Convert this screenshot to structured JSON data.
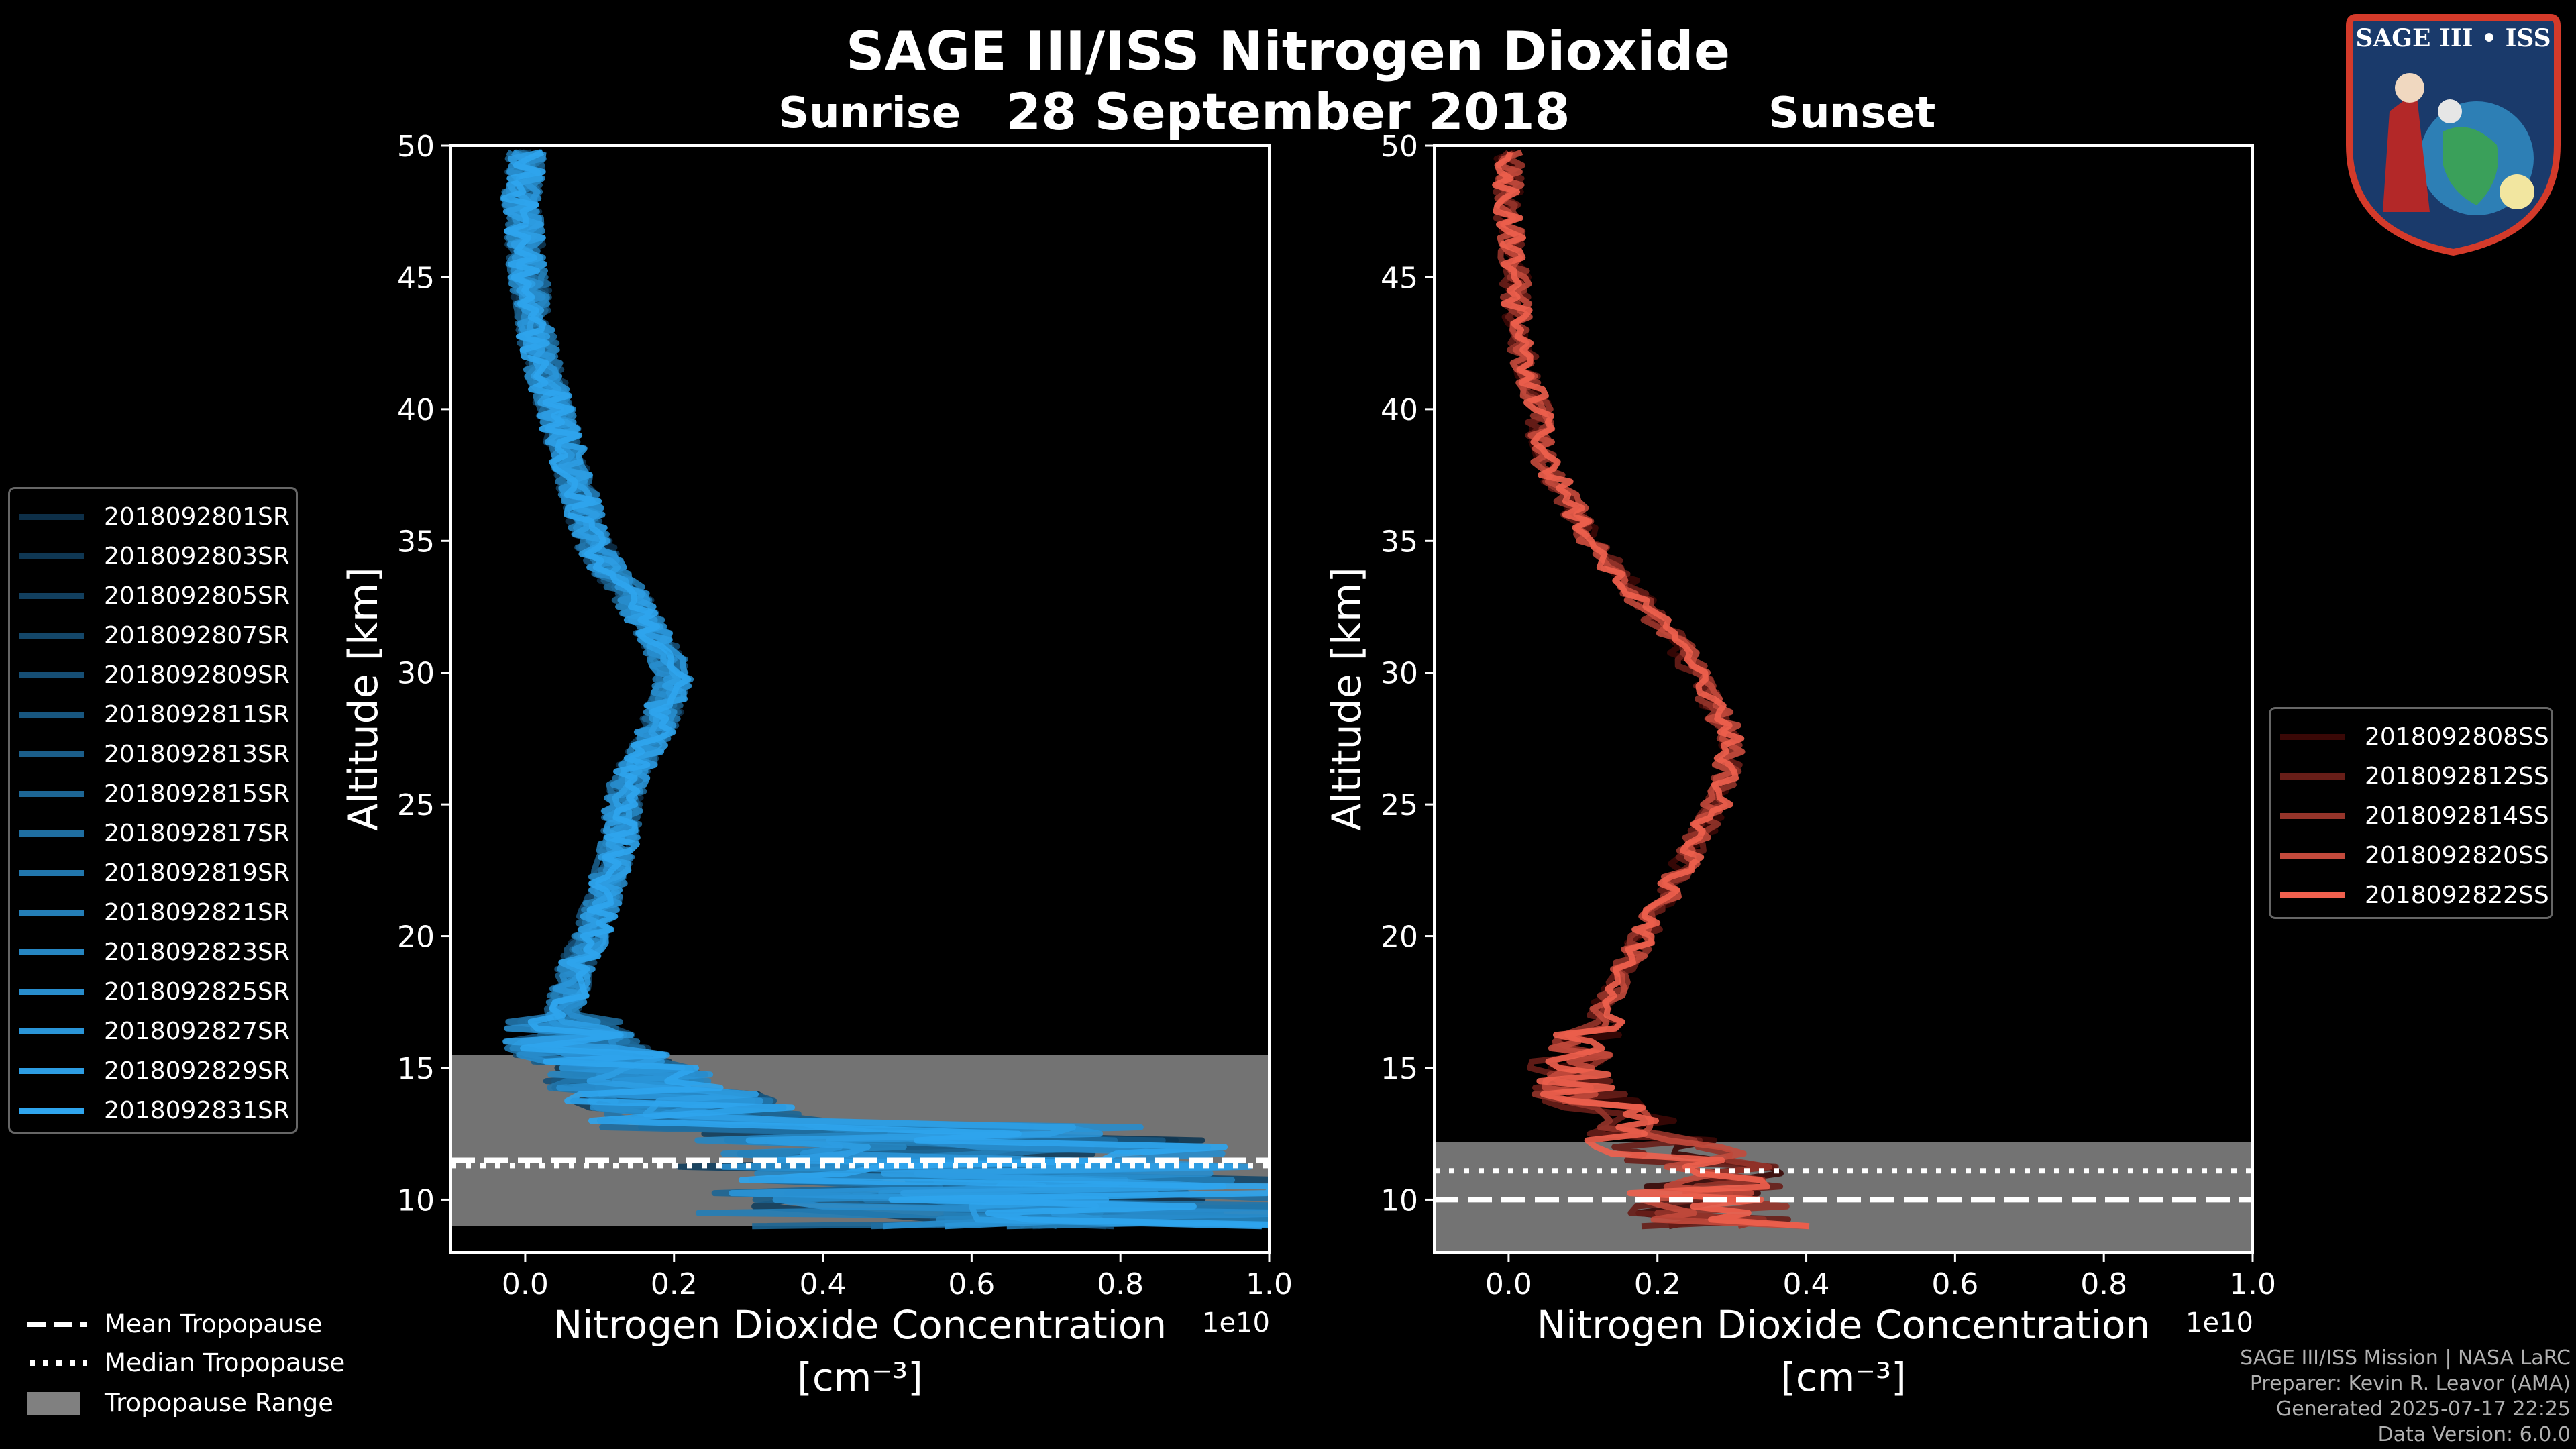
{
  "title": "SAGE III/ISS Nitrogen Dioxide",
  "date": "28 September 2018",
  "colors": {
    "sunrise": "#1f8fd6",
    "sunset": "#f06050",
    "tropopause_range": "#808080"
  },
  "chart_data": [
    {
      "type": "line",
      "subtitle": "Sunrise",
      "xlabel": "Nitrogen Dioxide Concentration",
      "xlabel_unit": "[cm⁻³]",
      "x_exponent": "1e10",
      "ylabel": "Altitude [km]",
      "xlim": [
        -0.1,
        1.0
      ],
      "ylim": [
        8,
        50
      ],
      "xticks": [
        "0.0",
        "0.2",
        "0.4",
        "0.6",
        "0.8",
        "1.0"
      ],
      "yticks": [
        "10",
        "15",
        "20",
        "25",
        "30",
        "35",
        "40",
        "45",
        "50"
      ],
      "legend_position": "left",
      "tropopause": {
        "mean": 11.5,
        "median": 11.3,
        "range": [
          9,
          15.5
        ]
      },
      "profile_altitudes": [
        9,
        10,
        11,
        12,
        13,
        14,
        15,
        16,
        17,
        18,
        19,
        20,
        21,
        22,
        23,
        24,
        25,
        26,
        27,
        28,
        29,
        30,
        31,
        32,
        33,
        34,
        35,
        36,
        37,
        38,
        39,
        40,
        41,
        42,
        43,
        44,
        45,
        46,
        47,
        48,
        49,
        50
      ],
      "profile_mean_x": [
        0.45,
        0.4,
        0.35,
        0.3,
        0.25,
        0.18,
        0.12,
        0.06,
        0.05,
        0.06,
        0.07,
        0.09,
        0.1,
        0.11,
        0.12,
        0.13,
        0.13,
        0.14,
        0.16,
        0.18,
        0.19,
        0.2,
        0.18,
        0.16,
        0.14,
        0.11,
        0.09,
        0.08,
        0.07,
        0.06,
        0.05,
        0.04,
        0.03,
        0.02,
        0.015,
        0.01,
        0.005,
        0.0,
        0.0,
        -0.005,
        0.0,
        0.0
      ],
      "series": [
        {
          "name": "2018092801SR"
        },
        {
          "name": "2018092803SR"
        },
        {
          "name": "2018092805SR"
        },
        {
          "name": "2018092807SR"
        },
        {
          "name": "2018092809SR"
        },
        {
          "name": "2018092811SR"
        },
        {
          "name": "2018092813SR"
        },
        {
          "name": "2018092815SR"
        },
        {
          "name": "2018092817SR"
        },
        {
          "name": "2018092819SR"
        },
        {
          "name": "2018092821SR"
        },
        {
          "name": "2018092823SR"
        },
        {
          "name": "2018092825SR"
        },
        {
          "name": "2018092827SR"
        },
        {
          "name": "2018092829SR"
        },
        {
          "name": "2018092831SR"
        }
      ]
    },
    {
      "type": "line",
      "subtitle": "Sunset",
      "xlabel": "Nitrogen Dioxide Concentration",
      "xlabel_unit": "[cm⁻³]",
      "x_exponent": "1e10",
      "ylabel": "Altitude [km]",
      "xlim": [
        -0.1,
        1.0
      ],
      "ylim": [
        8,
        50
      ],
      "xticks": [
        "0.0",
        "0.2",
        "0.4",
        "0.6",
        "0.8",
        "1.0"
      ],
      "yticks": [
        "10",
        "15",
        "20",
        "25",
        "30",
        "35",
        "40",
        "45",
        "50"
      ],
      "legend_position": "right",
      "tropopause": {
        "mean": 10,
        "median": 11.1,
        "range": [
          8,
          12.2
        ]
      },
      "profile_altitudes": [
        9,
        10,
        11,
        12,
        13,
        14,
        15,
        16,
        17,
        18,
        19,
        20,
        21,
        22,
        23,
        24,
        25,
        26,
        27,
        28,
        29,
        30,
        31,
        32,
        33,
        34,
        35,
        36,
        37,
        38,
        39,
        40,
        41,
        42,
        43,
        44,
        45,
        46,
        47,
        48,
        49,
        50
      ],
      "profile_mean_x": [
        0.3,
        0.25,
        0.3,
        0.2,
        0.15,
        0.1,
        0.08,
        0.1,
        0.12,
        0.14,
        0.16,
        0.18,
        0.2,
        0.22,
        0.24,
        0.26,
        0.28,
        0.29,
        0.3,
        0.29,
        0.27,
        0.25,
        0.23,
        0.2,
        0.17,
        0.14,
        0.11,
        0.09,
        0.07,
        0.05,
        0.04,
        0.04,
        0.03,
        0.02,
        0.015,
        0.01,
        0.01,
        0.005,
        0.0,
        0.0,
        0.0,
        0.005
      ],
      "series": [
        {
          "name": "2018092808SS"
        },
        {
          "name": "2018092812SS"
        },
        {
          "name": "2018092814SS"
        },
        {
          "name": "2018092820SS"
        },
        {
          "name": "2018092822SS"
        }
      ]
    }
  ],
  "bottom_legend": [
    {
      "label": "Mean Tropopause",
      "style": "dashed"
    },
    {
      "label": "Median Tropopause",
      "style": "dotted"
    },
    {
      "label": "Tropopause Range",
      "style": "patch"
    }
  ],
  "credits": [
    "SAGE III/ISS Mission | NASA LaRC",
    "Preparer: Kevin R. Leavor (AMA)",
    "Generated 2025-07-17 22:25",
    "Data Version: 6.0.0"
  ],
  "logo": {
    "text": "SAGE III • ISS",
    "icon": "mission-patch-icon"
  }
}
